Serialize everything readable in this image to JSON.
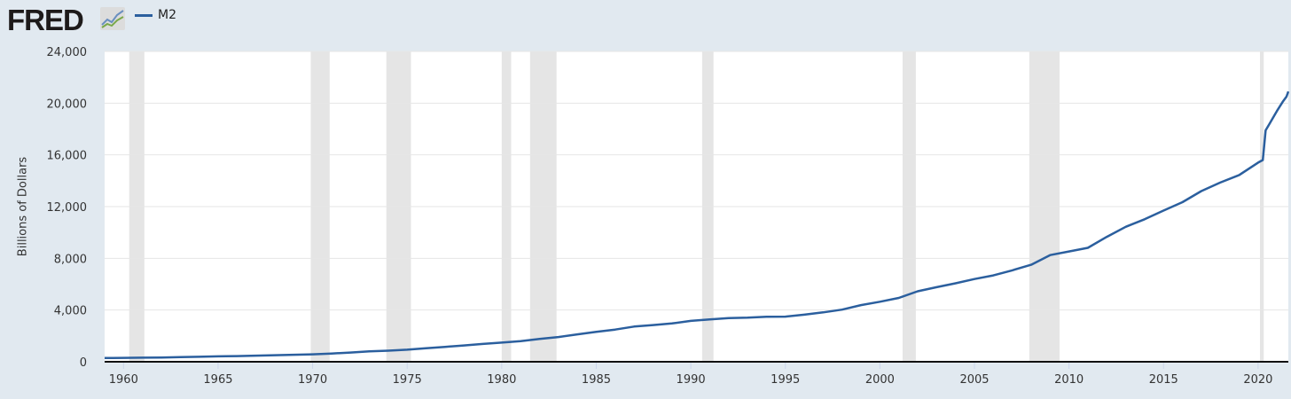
{
  "header": {
    "logo_text": "FRED",
    "logo_icon": "chart-line-icon"
  },
  "chart_data": {
    "type": "line",
    "title": "",
    "xlabel": "",
    "ylabel": "Billions of Dollars",
    "xlim": [
      1959.0,
      2021.6
    ],
    "ylim": [
      0,
      24000
    ],
    "grid": true,
    "legend_position": "top-left",
    "y_ticks": [
      "0",
      "4,000",
      "8,000",
      "12,000",
      "16,000",
      "20,000",
      "24,000"
    ],
    "x_ticks": [
      "1960",
      "1965",
      "1970",
      "1975",
      "1980",
      "1985",
      "1990",
      "1995",
      "2000",
      "2005",
      "2010",
      "2015",
      "2020"
    ],
    "series": [
      {
        "name": "M2",
        "color": "#2b5f9e",
        "x": [
          1959,
          1960,
          1961,
          1962,
          1963,
          1964,
          1965,
          1966,
          1967,
          1968,
          1969,
          1970,
          1971,
          1972,
          1973,
          1974,
          1975,
          1976,
          1977,
          1978,
          1979,
          1980,
          1981,
          1982,
          1983,
          1984,
          1985,
          1986,
          1987,
          1988,
          1989,
          1990,
          1991,
          1992,
          1993,
          1994,
          1995,
          1996,
          1997,
          1998,
          1999,
          2000,
          2001,
          2002,
          2003,
          2004,
          2005,
          2006,
          2007,
          2008,
          2009,
          2010,
          2011,
          2012,
          2013,
          2014,
          2015,
          2016,
          2017,
          2018,
          2019,
          2020,
          2020.25,
          2020.4,
          2020.6,
          2021,
          2021.3,
          2021.5,
          2021.6
        ],
        "y": [
          287,
          300,
          312,
          330,
          360,
          385,
          415,
          440,
          470,
          510,
          545,
          575,
          635,
          710,
          800,
          855,
          935,
          1040,
          1150,
          1260,
          1380,
          1480,
          1600,
          1760,
          1910,
          2120,
          2310,
          2490,
          2720,
          2840,
          2960,
          3160,
          3280,
          3380,
          3410,
          3480,
          3490,
          3640,
          3820,
          4030,
          4380,
          4640,
          4940,
          5450,
          5770,
          6070,
          6400,
          6680,
          7070,
          7500,
          8250,
          8530,
          8810,
          9660,
          10440,
          11020,
          11690,
          12340,
          13200,
          13860,
          14440,
          15400,
          15600,
          17900,
          18400,
          19400,
          20100,
          20500,
          20900
        ]
      }
    ],
    "recessions": [
      [
        1960.3,
        1961.1
      ],
      [
        1969.9,
        1970.9
      ],
      [
        1973.9,
        1975.2
      ],
      [
        1980.0,
        1980.5
      ],
      [
        1981.5,
        1982.9
      ],
      [
        1990.6,
        1991.2
      ],
      [
        2001.2,
        2001.9
      ],
      [
        2007.9,
        2009.5
      ],
      [
        2020.1,
        2020.3
      ]
    ],
    "recession_color": "#e5e5e5"
  }
}
